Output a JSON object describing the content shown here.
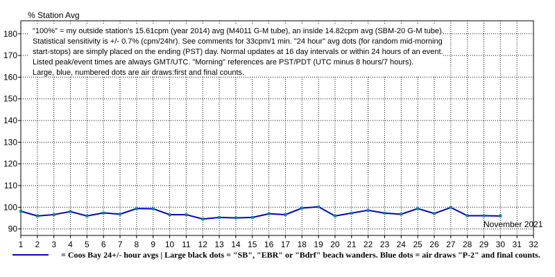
{
  "chart_data": {
    "type": "line",
    "title": "% Station Avg",
    "month_label": "November 2021",
    "ylim": [
      87,
      186
    ],
    "yticks": [
      90,
      100,
      110,
      120,
      130,
      140,
      150,
      160,
      170,
      180
    ],
    "xlim": [
      1,
      32
    ],
    "xticks": [
      1,
      2,
      3,
      4,
      5,
      6,
      7,
      8,
      9,
      10,
      11,
      12,
      13,
      14,
      15,
      16,
      17,
      18,
      19,
      20,
      21,
      22,
      23,
      24,
      25,
      26,
      27,
      28,
      29,
      30,
      31,
      32
    ],
    "grid": true,
    "notes": [
      "\"100%\" = my outside station's 15.61cpm (year 2014) avg (M4011 G-M tube), an inside 14.82cpm avg (SBM-20 G-M tube).",
      "Statistical sensitivity is +/- 0.7% (cpm/24hr). See comments for 33cpm/1 min. \"24 hour\" avg dots (for random mid-morning",
      "start-stops) are simply placed on the ending (PST) day. Normal updates at 16 day intervals or within 24 hours of an event.",
      "Listed peak/event times are always GMT/UTC.  \"Morning\" references are PST/PDT (UTC minus 8 hours/7 hours).",
      "Large, blue, numbered dots are air draws:first and final counts."
    ],
    "legend": "= Coos Bay 24+/- hour avgs | Large black dots = \"SB\", \"EBR\" or \"Bdrf\" beach wanders. Blue dots = air draws \"P-2\" and final counts.",
    "series": [
      {
        "color": "#0000cc",
        "marker_color": "#008b8b",
        "x": [
          1,
          2,
          3,
          4,
          5,
          6,
          7,
          8,
          9,
          10,
          11,
          12,
          13,
          14,
          15,
          16,
          17,
          18,
          19,
          20,
          21,
          22,
          23,
          24,
          25,
          26,
          27,
          28,
          29,
          30
        ],
        "values": [
          98.2,
          96.0,
          96.6,
          98.0,
          96.0,
          97.4,
          96.8,
          99.4,
          99.3,
          96.6,
          96.6,
          94.6,
          95.3,
          95.1,
          95.3,
          97.0,
          96.6,
          99.6,
          100.2,
          96.0,
          97.3,
          98.6,
          97.3,
          96.8,
          99.4,
          97.1,
          99.9,
          96.1,
          96.1,
          96.0
        ]
      }
    ]
  }
}
